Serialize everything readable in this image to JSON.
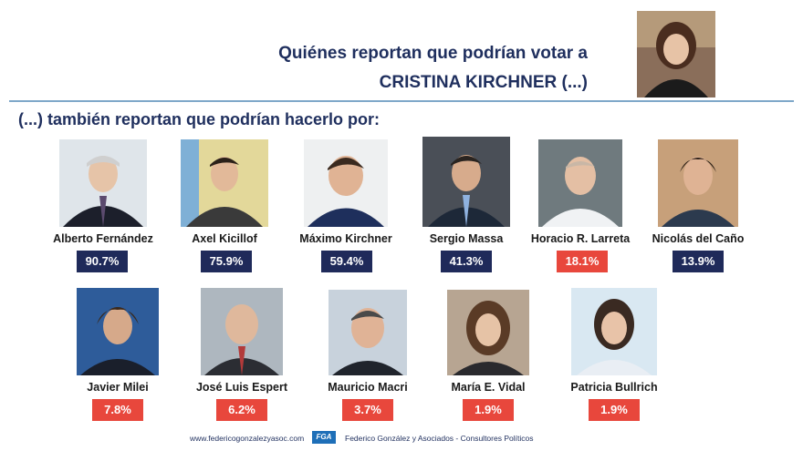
{
  "title": {
    "line1": "Quiénes reportan que podrían votar a",
    "line2": "CRISTINA KIRCHNER (...)"
  },
  "subtitle": "(...) también reportan que podrían hacerlo por:",
  "people": [
    {
      "name": "Alberto Fernández",
      "percent": "90.7%",
      "color": "#1f2a5a"
    },
    {
      "name": "Axel Kicillof",
      "percent": "75.9%",
      "color": "#1f2a5a"
    },
    {
      "name": "Máximo Kirchner",
      "percent": "59.4%",
      "color": "#1f2a5a"
    },
    {
      "name": "Sergio Massa",
      "percent": "41.3%",
      "color": "#1f2a5a"
    },
    {
      "name": "Horacio R. Larreta",
      "percent": "18.1%",
      "color": "#e8473c"
    },
    {
      "name": "Nicolás del Caño",
      "percent": "13.9%",
      "color": "#1f2a5a"
    },
    {
      "name": "Javier Milei",
      "percent": "7.8%",
      "color": "#e8473c"
    },
    {
      "name": "José Luis Espert",
      "percent": "6.2%",
      "color": "#e8473c"
    },
    {
      "name": "Mauricio Macri",
      "percent": "3.7%",
      "color": "#e8473c"
    },
    {
      "name": "María E. Vidal",
      "percent": "1.9%",
      "color": "#e8473c"
    },
    {
      "name": "Patricia Bullrich",
      "percent": "1.9%",
      "color": "#e8473c"
    }
  ],
  "footer": {
    "url": "www.federicogonzalezyasoc.com",
    "logo": "FGA",
    "firm": "Federico González y Asociados - Consultores Políticos"
  }
}
